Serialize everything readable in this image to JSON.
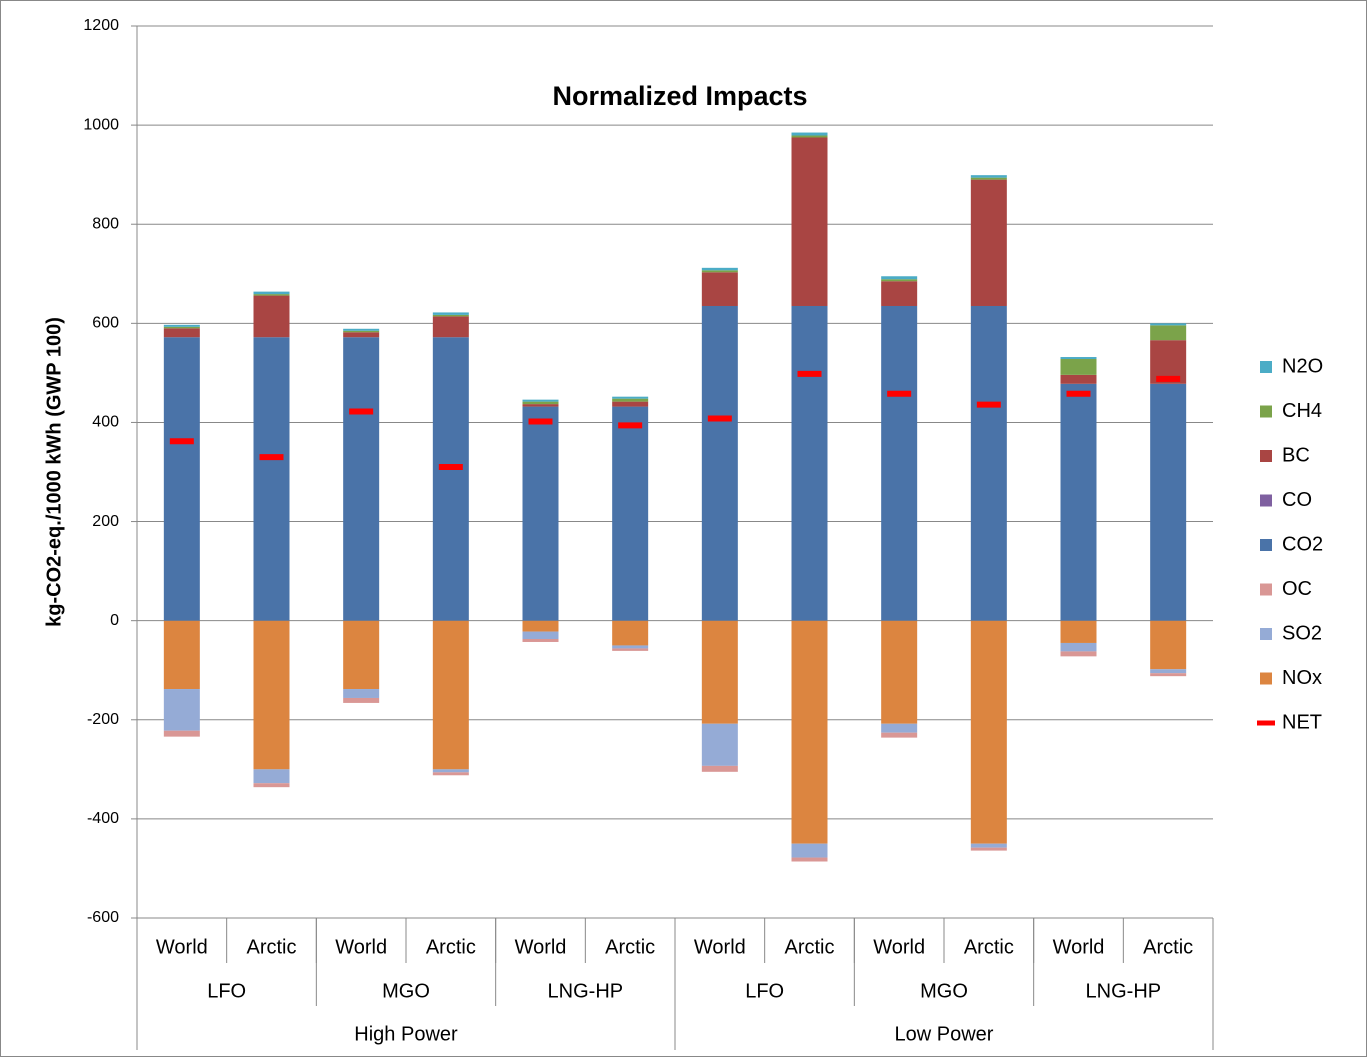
{
  "chart_data": {
    "type": "stacked_bar",
    "title": "Normalized Impacts",
    "y_label": "kg-CO2-eq./1000 kWh (GWP 100)",
    "categories": [
      "World",
      "Arctic",
      "World",
      "Arctic",
      "World",
      "Arctic",
      "World",
      "Arctic",
      "World",
      "Arctic",
      "World",
      "Arctic"
    ],
    "category_groups": [
      {
        "labels": [
          "LFO",
          "MGO",
          "LNG-HP",
          "LFO",
          "MGO",
          "LNG-HP"
        ]
      },
      {
        "labels": [
          "High Power",
          "Low Power"
        ]
      }
    ],
    "ylim": [
      -600,
      1200
    ],
    "yticks": [
      -600,
      -400,
      -200,
      0,
      200,
      400,
      600,
      800,
      1000,
      1200
    ],
    "grid": true,
    "legend": "right",
    "series": [
      {
        "name": "NOx",
        "color": "#dc8540",
        "values": [
          -138,
          -300,
          -138,
          -300,
          -22,
          -50,
          -208,
          -450,
          -208,
          -450,
          -45,
          -98
        ]
      },
      {
        "name": "SO2",
        "color": "#95abd6",
        "values": [
          -84,
          -28,
          -18,
          -6,
          -15,
          -6,
          -85,
          -28,
          -18,
          -8,
          -17,
          -8
        ]
      },
      {
        "name": "OC",
        "color": "#d99795",
        "values": [
          -12,
          -8,
          -10,
          -6,
          -6,
          -5,
          -12,
          -8,
          -10,
          -6,
          -10,
          -6
        ]
      },
      {
        "name": "CO2",
        "color": "#4a73a8",
        "values": [
          572,
          572,
          572,
          572,
          432,
          432,
          635,
          635,
          635,
          635,
          478,
          478
        ]
      },
      {
        "name": "CO",
        "color": "#7f60a0",
        "values": [
          0,
          0,
          0,
          0,
          0,
          0,
          0,
          0,
          0,
          0,
          0,
          0
        ]
      },
      {
        "name": "BC",
        "color": "#a94543",
        "values": [
          18,
          84,
          10,
          42,
          5,
          10,
          68,
          340,
          50,
          255,
          18,
          88
        ]
      },
      {
        "name": "CH4",
        "color": "#7ba34a",
        "values": [
          3,
          3,
          3,
          3,
          5,
          6,
          4,
          4,
          4,
          4,
          32,
          30
        ]
      },
      {
        "name": "N2O",
        "color": "#4bacc6",
        "values": [
          4,
          5,
          4,
          5,
          4,
          4,
          5,
          6,
          6,
          5,
          4,
          4
        ]
      }
    ],
    "net": {
      "name": "NET",
      "color": "#ff0000",
      "values": [
        362,
        330,
        422,
        310,
        402,
        394,
        408,
        498,
        458,
        436,
        458,
        488
      ]
    }
  }
}
